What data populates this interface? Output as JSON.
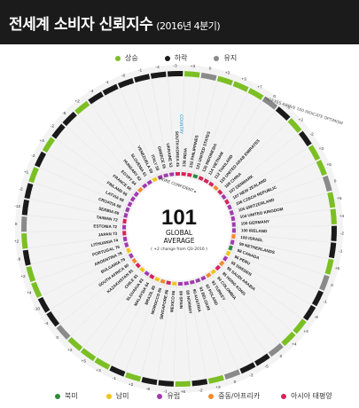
{
  "header": {
    "title": "전세계 소비자 신뢰지수",
    "subtitle": "(2016년 4분기)"
  },
  "change_legend": [
    {
      "label": "상승",
      "color": "#7cbf24"
    },
    {
      "label": "하락",
      "color": "#1a1a1a"
    },
    {
      "label": "유지",
      "color": "#8a8a8a"
    }
  ],
  "region_legend": [
    {
      "label": "북미",
      "color": "#2e8b3a"
    },
    {
      "label": "남미",
      "color": "#f0c419"
    },
    {
      "label": "유럽",
      "color": "#a23ab0"
    },
    {
      "label": "중동/아프리카",
      "color": "#f28a2e"
    },
    {
      "label": "아시아 태평양",
      "color": "#d6245a"
    }
  ],
  "center": {
    "value": "101",
    "line1": "GLOBAL",
    "line2": "AVERAGE",
    "note": "( +2 change from Q3-2016 )"
  },
  "annotations": {
    "country_label": "COUNTRY",
    "confident": "MORE CONFIDENT ▸",
    "indexes_note": "INDEXES ABOVE 100 INDICATE OPTIMISM"
  },
  "chart_data": {
    "type": "radial-bar",
    "title": "전세계 소비자 신뢰지수",
    "subtitle": "(2016년 4분기)",
    "global_average": 101,
    "global_change": 2,
    "countries": [
      {
        "name": "INDIA",
        "value": 136,
        "change": 3
      },
      {
        "name": "PHILIPPINES",
        "value": 132,
        "change": 0
      },
      {
        "name": "UNITED STATES",
        "value": 121,
        "change": 3
      },
      {
        "name": "INDONESIA",
        "value": 120,
        "change": 3
      },
      {
        "name": "VIETNAM",
        "value": 114,
        "change": 7
      },
      {
        "name": "THAILAND",
        "value": 112,
        "change": 0
      },
      {
        "name": "UNITED ARAB EMIRATES",
        "value": 110,
        "change": -5
      },
      {
        "name": "CHINA",
        "value": 108,
        "change": 2
      },
      {
        "name": "DENMARK",
        "value": 107,
        "change": -2
      },
      {
        "name": "NEW ZEALAND",
        "value": 107,
        "change": 3
      },
      {
        "name": "CZECH REPUBLIC",
        "value": 106,
        "change": 5
      },
      {
        "name": "SWITZERLAND",
        "value": 105,
        "change": 0
      },
      {
        "name": "UNITED KINGDOM",
        "value": 104,
        "change": 5
      },
      {
        "name": "GERMANY",
        "value": 100,
        "change": 4
      },
      {
        "name": "IRELAND",
        "value": 100,
        "change": -2
      },
      {
        "name": "ISRAEL",
        "value": 100,
        "change": -1
      },
      {
        "name": "NETHERLANDS",
        "value": 99,
        "change": 5
      },
      {
        "name": "CANADA",
        "value": 98,
        "change": 0
      },
      {
        "name": "PERU",
        "value": 96,
        "change": -1
      },
      {
        "name": "SWEDEN",
        "value": 95,
        "change": -8
      },
      {
        "name": "SAUDI ARABIA",
        "value": 95,
        "change": 4
      },
      {
        "name": "HONG KONG",
        "value": 95,
        "change": 4
      },
      {
        "name": "COLOMBIA",
        "value": 94,
        "change": 0
      },
      {
        "name": "TURKEY",
        "value": 93,
        "change": -5
      },
      {
        "name": "POLAND",
        "value": 92,
        "change": -3
      },
      {
        "name": "BELGIUM",
        "value": 92,
        "change": 0
      },
      {
        "name": "AUSTRIA",
        "value": 90,
        "change": 3
      },
      {
        "name": "NORWAY",
        "value": 89,
        "change": -2
      },
      {
        "name": "SPAIN",
        "value": 89,
        "change": 6
      },
      {
        "name": "MEXICO",
        "value": 86,
        "change": -1
      },
      {
        "name": "SINGAPORE",
        "value": 86,
        "change": -8
      },
      {
        "name": "MOROCCO",
        "value": 85,
        "change": 2
      },
      {
        "name": "BRAZIL",
        "value": 85,
        "change": -1
      },
      {
        "name": "MALAYSIA",
        "value": 84,
        "change": 3
      },
      {
        "name": "SLOVAKIA",
        "value": 83,
        "change": 5
      },
      {
        "name": "CHILE",
        "value": 81,
        "change": 2
      },
      {
        "name": "KAZAKHSTAN",
        "value": 81,
        "change": 0
      },
      {
        "name": "SOUTH AFRICA",
        "value": 80,
        "change": -4
      },
      {
        "name": "BULGARIA",
        "value": 79,
        "change": -10
      },
      {
        "name": "ARGENTINA",
        "value": 78,
        "change": 4
      },
      {
        "name": "PORTUGAL",
        "value": 76,
        "change": 2
      },
      {
        "name": "LITHUANIA",
        "value": 74,
        "change": -9
      },
      {
        "name": "JAPAN",
        "value": 73,
        "change": 2
      },
      {
        "name": "ESTONIA",
        "value": 72,
        "change": 0
      },
      {
        "name": "TAIWAN",
        "value": 72,
        "change": -12
      },
      {
        "name": "SERBIA",
        "value": 69,
        "change": -2
      },
      {
        "name": "CROATIA",
        "value": 69,
        "change": 1
      },
      {
        "name": "LATVIA",
        "value": 68,
        "change": -2
      },
      {
        "name": "FINLAND",
        "value": 66,
        "change": 4
      },
      {
        "name": "FRANCE",
        "value": 66,
        "change": -2
      },
      {
        "name": "EGYPT",
        "value": 64,
        "change": -5
      },
      {
        "name": "HUNGARY",
        "value": 62,
        "change": 2
      },
      {
        "name": "SLOVENIA",
        "value": 61,
        "change": -4
      },
      {
        "name": "VENEZUELA",
        "value": 59,
        "change": -1
      },
      {
        "name": "ITALY",
        "value": 58,
        "change": -6
      },
      {
        "name": "GREECE",
        "value": 55,
        "change": -1
      },
      {
        "name": "UKRAINE",
        "value": 53,
        "change": -4
      },
      {
        "name": "SOUTH KOREA",
        "value": 45,
        "change": -3
      }
    ]
  }
}
